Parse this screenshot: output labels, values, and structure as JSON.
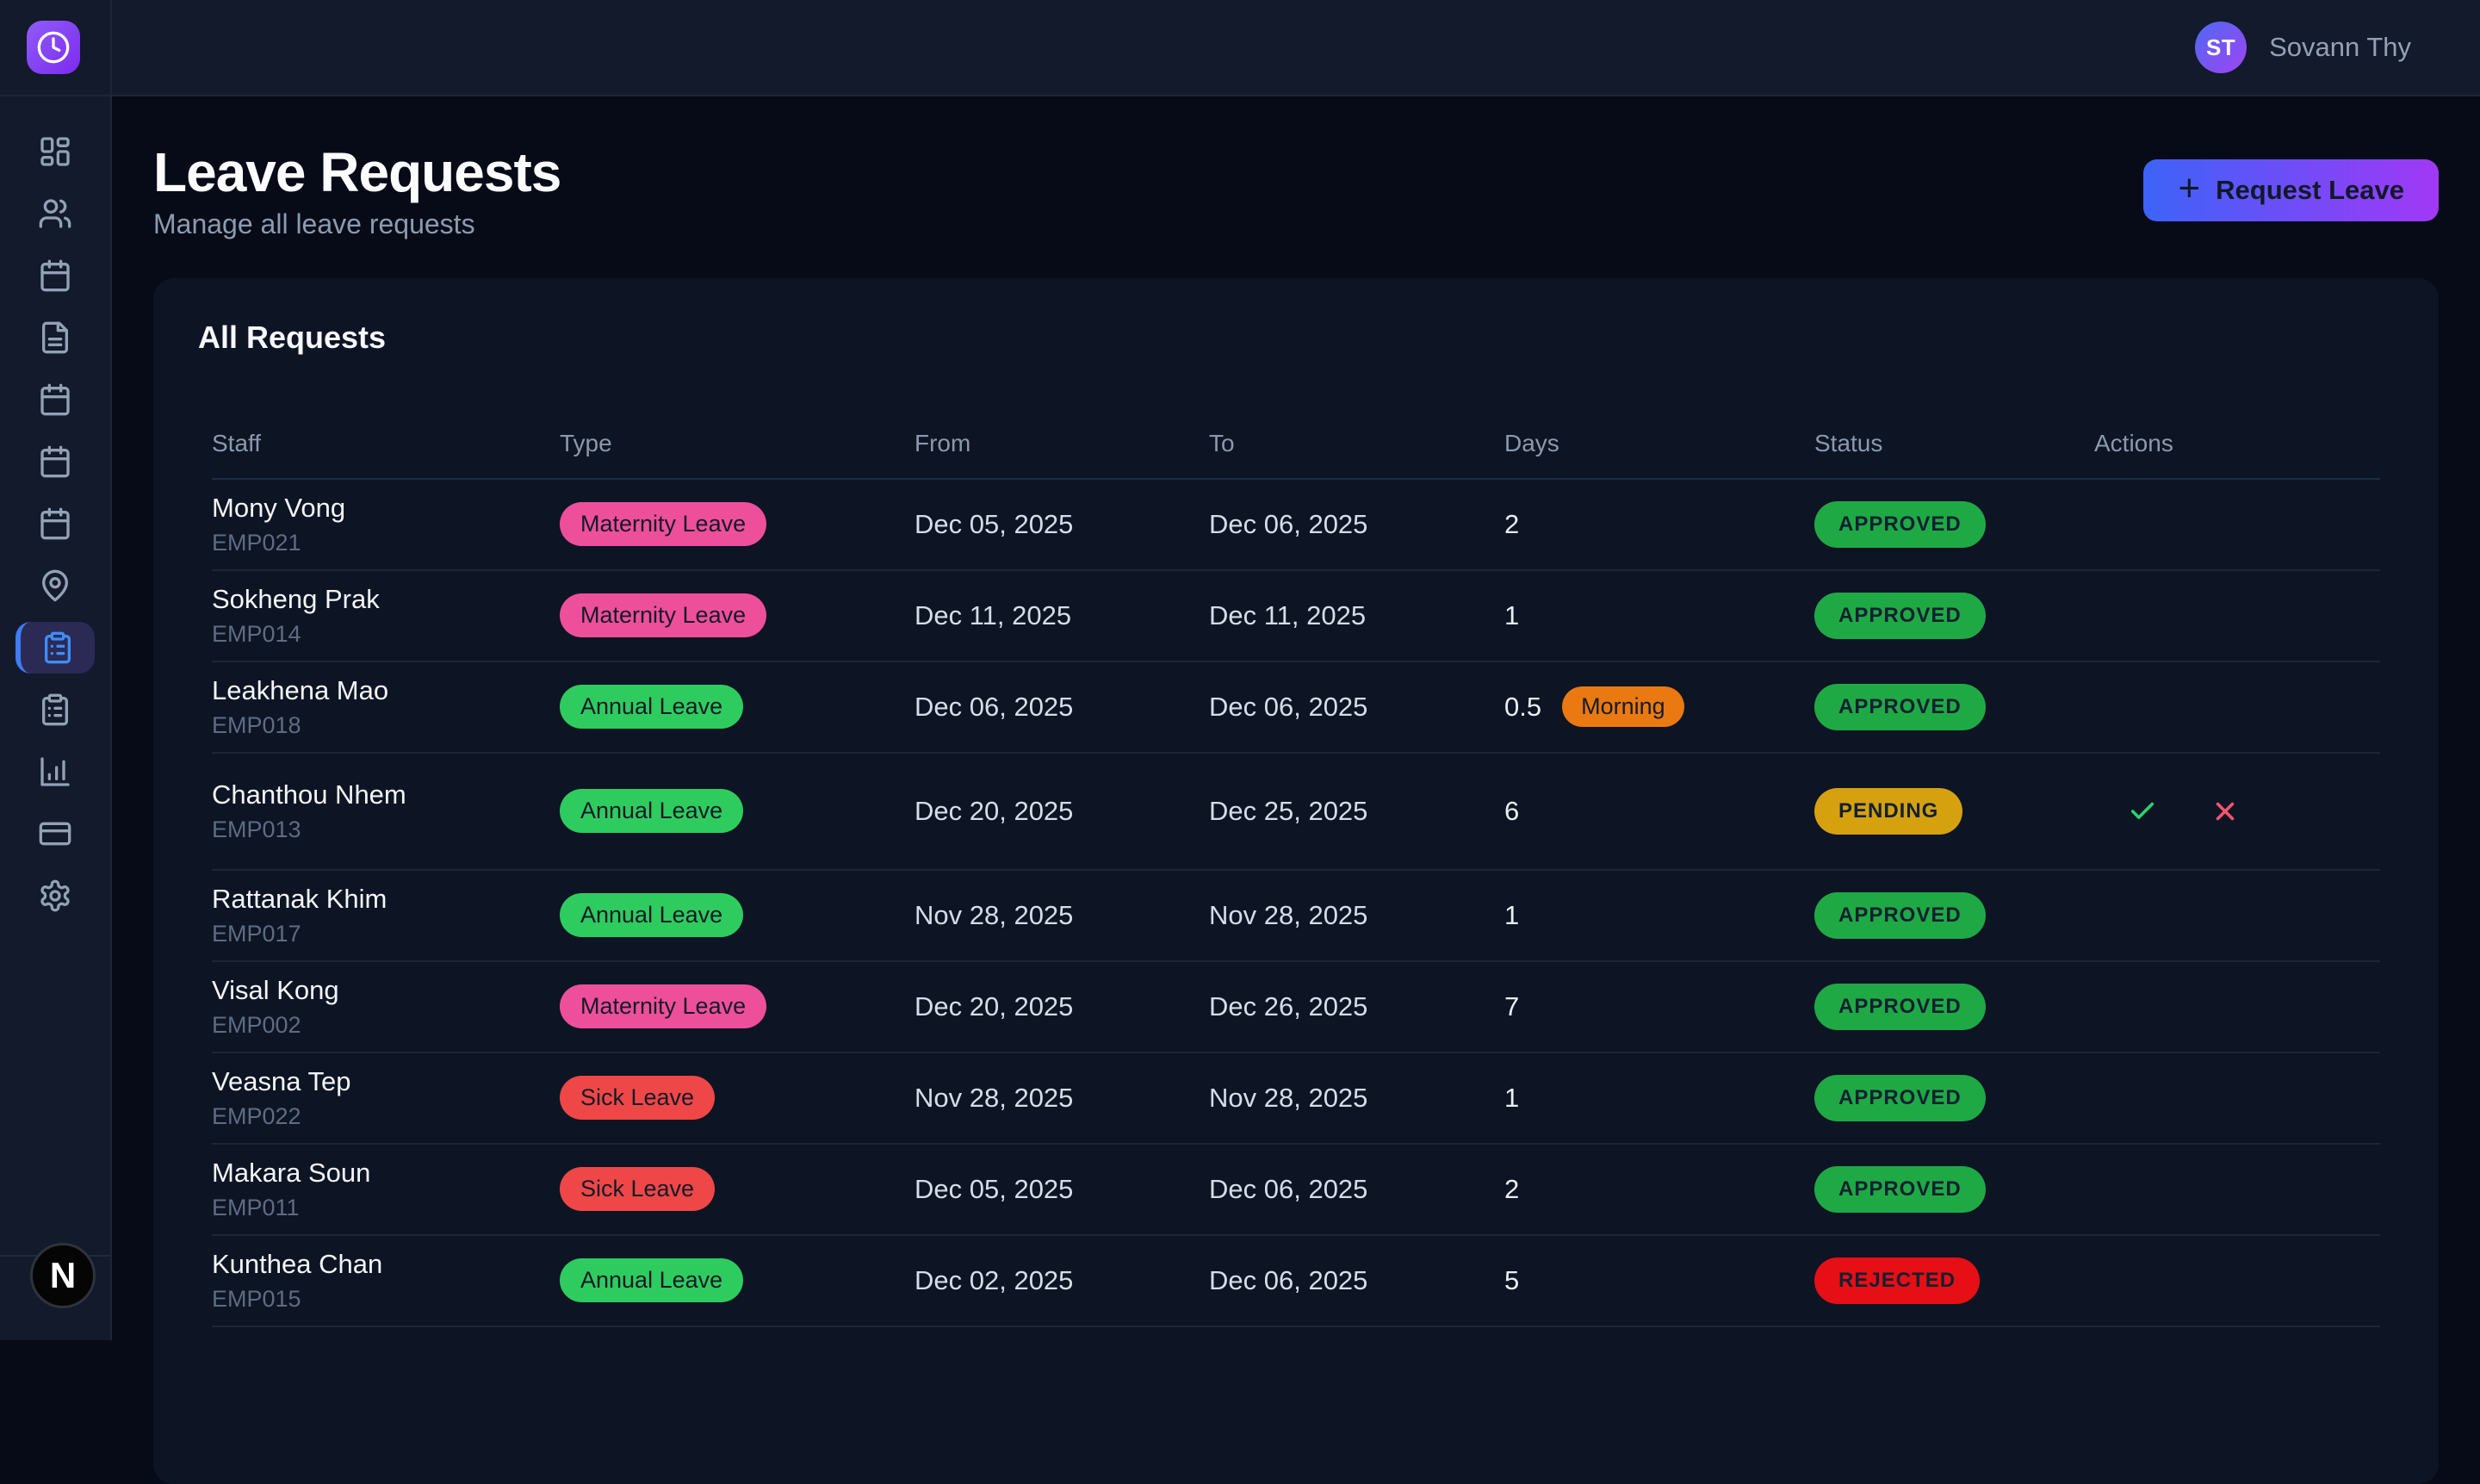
{
  "topbar": {
    "user": {
      "initials": "ST",
      "name": "Sovann Thy"
    }
  },
  "sidebar": {
    "items": [
      {
        "icon": "grid",
        "name": "dashboard",
        "active": false
      },
      {
        "icon": "users",
        "name": "employees",
        "active": false
      },
      {
        "icon": "calendar",
        "name": "calendar",
        "active": false
      },
      {
        "icon": "file",
        "name": "documents",
        "active": false
      },
      {
        "icon": "calendar",
        "name": "schedule",
        "active": false
      },
      {
        "icon": "calendar",
        "name": "shifts",
        "active": false
      },
      {
        "icon": "calendar",
        "name": "holidays",
        "active": false
      },
      {
        "icon": "pin",
        "name": "locations",
        "active": false
      },
      {
        "icon": "clipboard",
        "name": "leave-requests",
        "active": true
      },
      {
        "icon": "clipboard",
        "name": "requests",
        "active": false
      },
      {
        "icon": "chart",
        "name": "reports",
        "active": false
      },
      {
        "icon": "card",
        "name": "payroll",
        "active": false
      },
      {
        "icon": "gear",
        "name": "settings",
        "active": false
      }
    ]
  },
  "page": {
    "title": "Leave Requests",
    "subtitle": "Manage all leave requests",
    "request_button_label": "Request Leave",
    "plus_glyph": "+"
  },
  "card": {
    "title": "All Requests"
  },
  "table": {
    "columns": [
      "Staff",
      "Type",
      "From",
      "To",
      "Days",
      "Status",
      "Actions"
    ],
    "rows": [
      {
        "name": "Mony Vong",
        "emp": "EMP021",
        "type": "Maternity Leave",
        "type_key": "maternity",
        "from": "Dec 05, 2025",
        "to": "Dec 06, 2025",
        "days": "2",
        "day_part": "",
        "status": "APPROVED",
        "status_key": "approved",
        "actions": false
      },
      {
        "name": "Sokheng Prak",
        "emp": "EMP014",
        "type": "Maternity Leave",
        "type_key": "maternity",
        "from": "Dec 11, 2025",
        "to": "Dec 11, 2025",
        "days": "1",
        "day_part": "",
        "status": "APPROVED",
        "status_key": "approved",
        "actions": false
      },
      {
        "name": "Leakhena Mao",
        "emp": "EMP018",
        "type": "Annual Leave",
        "type_key": "annual",
        "from": "Dec 06, 2025",
        "to": "Dec 06, 2025",
        "days": "0.5",
        "day_part": "Morning",
        "status": "APPROVED",
        "status_key": "approved",
        "actions": false
      },
      {
        "name": "Chanthou Nhem",
        "emp": "EMP013",
        "type": "Annual Leave",
        "type_key": "annual",
        "from": "Dec 20, 2025",
        "to": "Dec 25, 2025",
        "days": "6",
        "day_part": "",
        "status": "PENDING",
        "status_key": "pending",
        "actions": true
      },
      {
        "name": "Rattanak Khim",
        "emp": "EMP017",
        "type": "Annual Leave",
        "type_key": "annual",
        "from": "Nov 28, 2025",
        "to": "Nov 28, 2025",
        "days": "1",
        "day_part": "",
        "status": "APPROVED",
        "status_key": "approved",
        "actions": false
      },
      {
        "name": "Visal Kong",
        "emp": "EMP002",
        "type": "Maternity Leave",
        "type_key": "maternity",
        "from": "Dec 20, 2025",
        "to": "Dec 26, 2025",
        "days": "7",
        "day_part": "",
        "status": "APPROVED",
        "status_key": "approved",
        "actions": false
      },
      {
        "name": "Veasna Tep",
        "emp": "EMP022",
        "type": "Sick Leave",
        "type_key": "sick",
        "from": "Nov 28, 2025",
        "to": "Nov 28, 2025",
        "days": "1",
        "day_part": "",
        "status": "APPROVED",
        "status_key": "approved",
        "actions": false
      },
      {
        "name": "Makara Soun",
        "emp": "EMP011",
        "type": "Sick Leave",
        "type_key": "sick",
        "from": "Dec 05, 2025",
        "to": "Dec 06, 2025",
        "days": "2",
        "day_part": "",
        "status": "APPROVED",
        "status_key": "approved",
        "actions": false
      },
      {
        "name": "Kunthea Chan",
        "emp": "EMP015",
        "type": "Annual Leave",
        "type_key": "annual",
        "from": "Dec 02, 2025",
        "to": "Dec 06, 2025",
        "days": "5",
        "day_part": "",
        "status": "REJECTED",
        "status_key": "rejected",
        "actions": false
      }
    ]
  },
  "colors": {
    "maternity": "#ee4f9b",
    "annual": "#2ecc5f",
    "sick": "#ef4747",
    "approved": "#1fa945",
    "pending": "#d5a10f",
    "rejected": "#e60f15",
    "morning": "#e97910",
    "check_icon": "#2bd46a",
    "x_icon": "#f4566c"
  },
  "dev_badge": {
    "label": "N"
  }
}
